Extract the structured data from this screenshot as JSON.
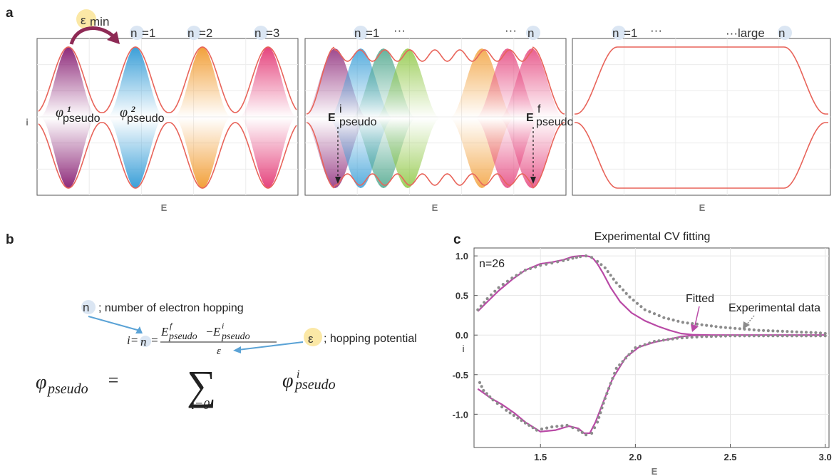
{
  "panel_a": {
    "letter": "a",
    "axis_x": "E",
    "axis_y": "i",
    "eps_min": {
      "symbol": "ε",
      "sub": "min"
    },
    "subplot1": {
      "badges": [
        {
          "n": "n",
          "rest": "=1"
        },
        {
          "n": "n",
          "rest": "=2"
        },
        {
          "n": "n",
          "rest": "=3"
        }
      ],
      "phi1": {
        "base": "φ",
        "sup": "1",
        "sub": "pseudo"
      },
      "phi2": {
        "base": "φ",
        "sup": "2",
        "sub": "pseudo"
      }
    },
    "subplot2": {
      "badge_left": {
        "n": "n",
        "rest": "=1",
        "dots": "···"
      },
      "badge_right": {
        "dots": "···",
        "n": "n"
      },
      "e_initial": {
        "base": "E",
        "sup": "i",
        "sub": "pseudo"
      },
      "e_final": {
        "base": "E",
        "sup": "f",
        "sub": "pseudo"
      }
    },
    "subplot3": {
      "badge_left": {
        "n": "n",
        "rest": "=1",
        "dots": "···"
      },
      "badge_right": {
        "pre": "···large",
        "n": "n"
      }
    },
    "peak_colors": [
      "#8e2a7a",
      "#3a9fd8",
      "#f2a03a",
      "#e5447d",
      "#4aa58a",
      "#8cc63f"
    ],
    "envelope_color": "#e8645a"
  },
  "panel_b": {
    "letter": "b",
    "n_note": {
      "n": "n",
      "text": "; number of electron hopping"
    },
    "eps_note": {
      "symbol": "ε",
      "text": "; hopping potential"
    },
    "formula": {
      "lhs": "φ",
      "lhs_sub": "pseudo",
      "eq": "=",
      "sum_upper_prefix": "i=",
      "sum_upper_n": "n",
      "sum_upper_eq": "=",
      "frac_num_a": "E",
      "frac_num_a_sup": "f",
      "frac_num_a_sub": "pseudo",
      "frac_minus": "−",
      "frac_num_b": "E",
      "frac_num_b_sup": "i",
      "frac_num_b_sub": "pseudo",
      "frac_den": "ε",
      "sigma": "∑",
      "sum_lower": "i=0",
      "term": "φ",
      "term_sup": "i",
      "term_sub": "pseudo"
    }
  },
  "panel_c": {
    "letter": "c",
    "title": "Experimental CV fitting",
    "n_label": "n=26",
    "fitted_label": "Fitted",
    "exp_label": "Experimental data",
    "xlabel": "E",
    "ylabel": "i",
    "fitted_color": "#b94aa6",
    "exp_color": "#8c8c8c"
  },
  "chart_data": {
    "type": "line",
    "title": "Experimental CV fitting",
    "xlabel": "E",
    "ylabel": "i",
    "xlim": [
      1.15,
      3.02
    ],
    "ylim": [
      -1.42,
      1.1
    ],
    "x_ticks": [
      "1.5",
      "2.0",
      "2.5",
      "3.0"
    ],
    "y_ticks": [
      "1.0",
      "0.5",
      "0.0",
      "-0.5",
      "-1.0"
    ],
    "grid": true,
    "annotation": "n=26",
    "series": [
      {
        "name": "Fitted",
        "style": "solid",
        "color": "#b94aa6",
        "x": [
          1.17,
          1.22,
          1.28,
          1.35,
          1.42,
          1.5,
          1.56,
          1.62,
          1.67,
          1.71,
          1.74,
          1.76,
          1.78,
          1.8,
          1.83,
          1.87,
          1.92,
          1.98,
          2.05,
          2.12,
          2.18,
          2.24,
          2.3,
          2.4,
          2.6,
          2.8,
          3.0,
          3.0,
          2.8,
          2.6,
          2.4,
          2.3,
          2.24,
          2.18,
          2.1,
          2.02,
          1.95,
          1.88,
          1.83,
          1.79,
          1.76,
          1.73,
          1.7,
          1.65,
          1.58,
          1.5,
          1.42,
          1.36,
          1.3,
          1.24,
          1.2,
          1.17
        ],
        "y": [
          0.3,
          0.42,
          0.56,
          0.7,
          0.82,
          0.9,
          0.92,
          0.95,
          0.99,
          1.0,
          1.0,
          0.99,
          0.96,
          0.9,
          0.78,
          0.6,
          0.42,
          0.28,
          0.18,
          0.11,
          0.06,
          0.02,
          0.005,
          0.0,
          0.0,
          0.0,
          0.0,
          0.0,
          0.0,
          0.0,
          0.0,
          -0.005,
          -0.02,
          -0.05,
          -0.09,
          -0.15,
          -0.28,
          -0.55,
          -0.85,
          -1.1,
          -1.24,
          -1.24,
          -1.18,
          -1.15,
          -1.2,
          -1.22,
          -1.1,
          -0.98,
          -0.88,
          -0.8,
          -0.73,
          -0.68
        ]
      },
      {
        "name": "Experimental data",
        "style": "dotted",
        "color": "#8c8c8c",
        "x": [
          1.17,
          1.22,
          1.28,
          1.35,
          1.42,
          1.5,
          1.56,
          1.62,
          1.67,
          1.71,
          1.74,
          1.77,
          1.8,
          1.84,
          1.9,
          1.97,
          2.05,
          2.15,
          2.25,
          2.35,
          2.45,
          2.55,
          2.65,
          2.75,
          2.85,
          2.95,
          3.0,
          3.0,
          2.9,
          2.7,
          2.5,
          2.35,
          2.22,
          2.1,
          2.0,
          1.9,
          1.84,
          1.8,
          1.77,
          1.74,
          1.7,
          1.64,
          1.56,
          1.48,
          1.4,
          1.32,
          1.25,
          1.2,
          1.17
        ],
        "y": [
          0.32,
          0.46,
          0.6,
          0.72,
          0.82,
          0.88,
          0.91,
          0.94,
          0.97,
          0.99,
          1.0,
          0.98,
          0.93,
          0.85,
          0.66,
          0.48,
          0.32,
          0.22,
          0.16,
          0.13,
          0.1,
          0.08,
          0.06,
          0.05,
          0.04,
          0.03,
          0.02,
          -0.01,
          -0.01,
          -0.01,
          -0.01,
          -0.02,
          -0.04,
          -0.08,
          -0.16,
          -0.42,
          -0.8,
          -1.1,
          -1.24,
          -1.26,
          -1.2,
          -1.14,
          -1.16,
          -1.2,
          -1.08,
          -0.95,
          -0.82,
          -0.7,
          -0.55
        ]
      }
    ]
  }
}
